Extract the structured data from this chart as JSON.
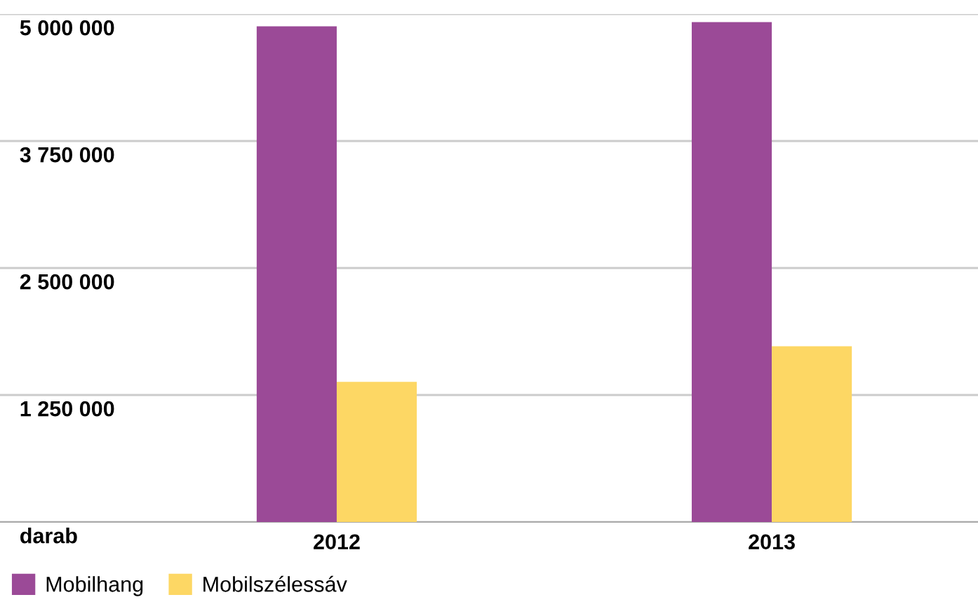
{
  "chart_data": {
    "type": "bar",
    "categories": [
      "2012",
      "2013"
    ],
    "series": [
      {
        "name": "Mobilhang",
        "color": "#9b4a97",
        "values": [
          4880000,
          4920000
        ]
      },
      {
        "name": "Mobilszélessáv",
        "color": "#fdd764",
        "values": [
          1380000,
          1730000
        ]
      }
    ],
    "ylim": [
      0,
      5000000
    ],
    "yticks": [
      {
        "value": 0,
        "label": "darab"
      },
      {
        "value": 1250000,
        "label": "1 250 000"
      },
      {
        "value": 2500000,
        "label": "2 500 000"
      },
      {
        "value": 3750000,
        "label": "3 750 000"
      },
      {
        "value": 5000000,
        "label": "5 000 000"
      }
    ],
    "grid": "y",
    "legend": "bottom left"
  }
}
